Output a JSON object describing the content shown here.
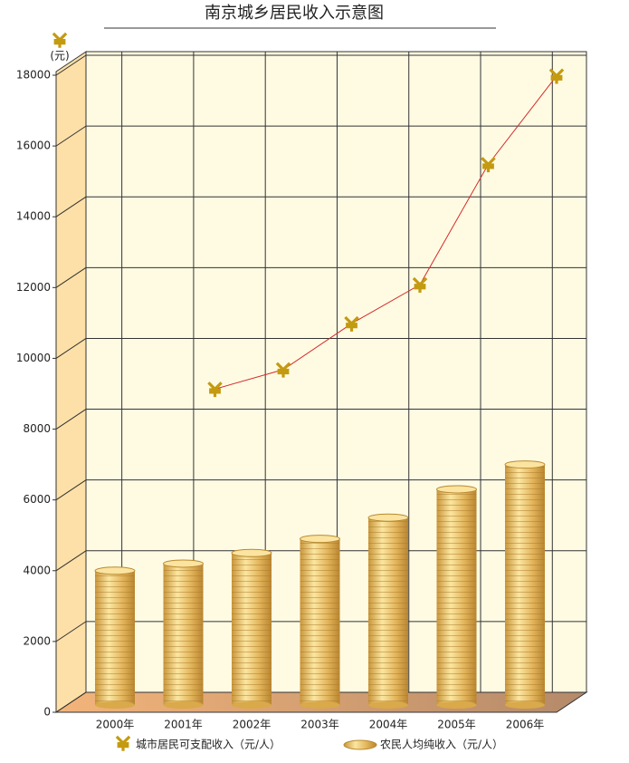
{
  "chart_data": {
    "type": "bar-line",
    "title": "南京城乡居民收入示意图",
    "y_unit": "(元)",
    "categories": [
      "2000年",
      "2001年",
      "2002年",
      "2003年",
      "2004年",
      "2005年",
      "2006年"
    ],
    "series": [
      {
        "name": "城市居民可支配收入（元/人）",
        "type": "line",
        "color": "#d42a2a",
        "values": [
          null,
          8850,
          9400,
          10700,
          11800,
          15200,
          17700
        ]
      },
      {
        "name": "农民人均纯收入（元/人）",
        "type": "bar",
        "color": "#e8c060",
        "values": [
          4000,
          4200,
          4500,
          4900,
          5500,
          6300,
          7000
        ]
      }
    ],
    "ylim": [
      0,
      18000
    ],
    "yticks": [
      0,
      2000,
      4000,
      6000,
      8000,
      10000,
      12000,
      14000,
      16000,
      18000
    ],
    "grid": true
  }
}
